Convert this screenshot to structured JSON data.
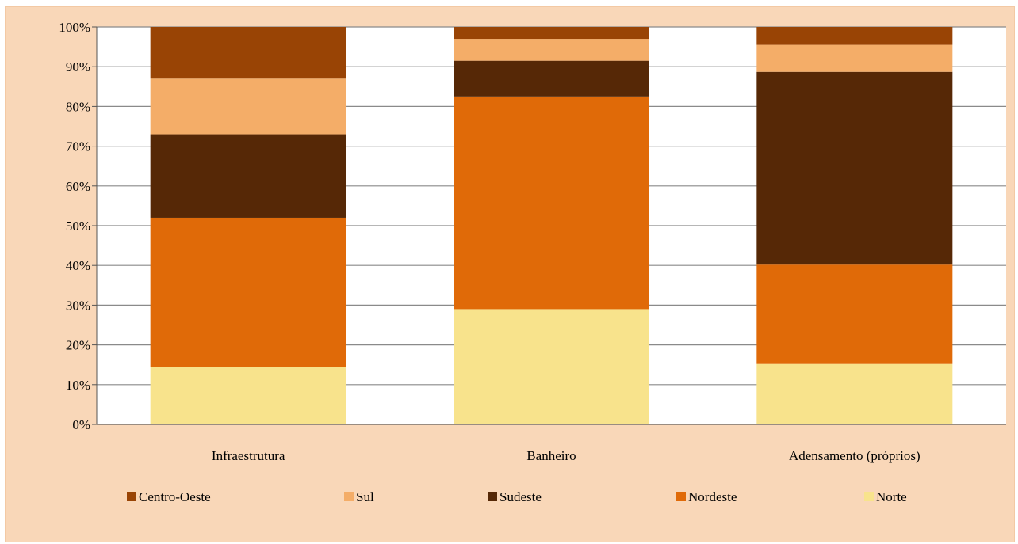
{
  "chart_data": {
    "type": "bar",
    "stacked": true,
    "percent": true,
    "categories": [
      "Infraestrutura",
      "Banheiro",
      "Adensamento (próprios)"
    ],
    "ylim": [
      0,
      100
    ],
    "yticks": [
      "0%",
      "10%",
      "20%",
      "30%",
      "40%",
      "50%",
      "60%",
      "70%",
      "80%",
      "90%",
      "100%"
    ],
    "grid": true,
    "legend_position": "bottom",
    "series": [
      {
        "name": "Norte",
        "color": "#f8e38c",
        "values": [
          14.5,
          29.0,
          15.2
        ]
      },
      {
        "name": "Nordeste",
        "color": "#e06a08",
        "values": [
          37.5,
          53.5,
          25.0
        ]
      },
      {
        "name": "Sudeste",
        "color": "#562806",
        "values": [
          21.0,
          9.0,
          48.5
        ]
      },
      {
        "name": "Sul",
        "color": "#f4ad68",
        "values": [
          14.0,
          5.5,
          6.8
        ]
      },
      {
        "name": "Centro-Oeste",
        "color": "#994405",
        "values": [
          13.0,
          3.0,
          4.5
        ]
      }
    ],
    "legend_order": [
      "Centro-Oeste",
      "Sul",
      "Sudeste",
      "Nordeste",
      "Norte"
    ]
  }
}
